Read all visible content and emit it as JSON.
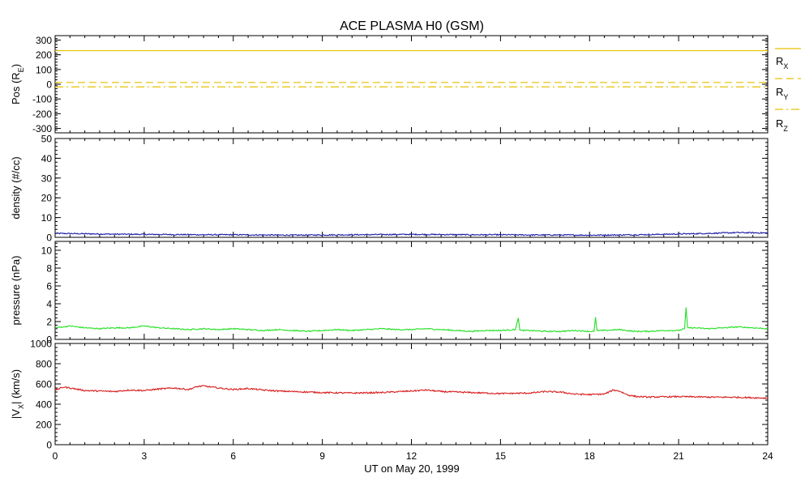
{
  "chart_data": {
    "type": "line",
    "title": "ACE PLASMA H0 (GSM)",
    "xlabel": "UT on May 20, 1999",
    "xlim": [
      0,
      24
    ],
    "x_ticks": [
      "0",
      "3",
      "6",
      "9",
      "12",
      "15",
      "18",
      "21",
      "24"
    ],
    "colors": {
      "yellow": "#e6c000",
      "blue": "#1a1aa8",
      "green": "#22e022",
      "red": "#d81a1a"
    },
    "panels": [
      {
        "id": "pos",
        "ylabel_main": "Pos (R",
        "ylabel_sub": "E",
        "ylabel_tail": ")",
        "ylim": [
          -330,
          330
        ],
        "y_ticks": [
          {
            "v": 300,
            "t": "300"
          },
          {
            "v": 200,
            "t": "200"
          },
          {
            "v": 100,
            "t": "100"
          },
          {
            "v": 0,
            "t": "0"
          },
          {
            "v": -100,
            "t": "-100"
          },
          {
            "v": -200,
            "t": "-200"
          },
          {
            "v": -300,
            "t": "-300"
          }
        ],
        "series": [
          {
            "key": "rx",
            "name_main": "R",
            "name_sub": "X",
            "style": "solid",
            "color": "#e6c000",
            "constant": 228
          },
          {
            "key": "ry",
            "name_main": "R",
            "name_sub": "Y",
            "style": "dashed",
            "color": "#e6c000",
            "constant": 12
          },
          {
            "key": "rz",
            "name_main": "R",
            "name_sub": "Z",
            "style": "dashdot",
            "color": "#e6c000",
            "constant": -18
          }
        ]
      },
      {
        "id": "density",
        "ylabel_main": "density (#/cc)",
        "ylim": [
          0,
          50
        ],
        "y_ticks": [
          {
            "v": 0,
            "t": "0"
          },
          {
            "v": 10,
            "t": "10"
          },
          {
            "v": 20,
            "t": "20"
          },
          {
            "v": 30,
            "t": "30"
          },
          {
            "v": 40,
            "t": "40"
          },
          {
            "v": 50,
            "t": "50"
          }
        ],
        "series": [
          {
            "key": "n",
            "color": "#1a1aa8",
            "x": [
              0,
              1,
              2,
              3,
              4,
              5,
              6,
              7,
              8,
              9,
              10,
              11,
              12,
              13,
              14,
              15,
              16,
              17,
              18,
              19,
              20,
              21,
              22,
              23,
              24
            ],
            "y": [
              2.0,
              1.8,
              1.6,
              1.5,
              1.4,
              1.3,
              1.3,
              1.2,
              1.1,
              1.2,
              1.3,
              1.4,
              1.5,
              1.4,
              1.3,
              1.3,
              1.2,
              1.2,
              1.1,
              1.2,
              1.4,
              1.7,
              2.0,
              2.4,
              2.2
            ]
          }
        ]
      },
      {
        "id": "pressure",
        "ylabel_main": "pressure (nPa)",
        "ylim": [
          0,
          11
        ],
        "y_ticks": [
          {
            "v": 0,
            "t": "0"
          },
          {
            "v": 2,
            "t": "2"
          },
          {
            "v": 4,
            "t": "4"
          },
          {
            "v": 6,
            "t": "6"
          },
          {
            "v": 8,
            "t": "8"
          },
          {
            "v": 10,
            "t": "10"
          }
        ],
        "series": [
          {
            "key": "p",
            "color": "#22e022",
            "x": [
              0,
              0.5,
              1,
              1.5,
              2,
              2.5,
              3,
              3.5,
              4,
              4.5,
              5,
              5.5,
              6,
              6.5,
              7,
              7.5,
              8,
              8.5,
              9,
              9.5,
              10,
              10.5,
              11,
              11.5,
              12,
              12.5,
              13,
              13.5,
              14,
              14.5,
              15,
              15.5,
              15.6,
              15.65,
              15.7,
              16,
              16.5,
              17,
              17.5,
              18,
              18.15,
              18.2,
              18.25,
              18.5,
              19,
              19.5,
              20,
              20.5,
              21,
              21.2,
              21.25,
              21.3,
              21.5,
              22,
              22.5,
              23,
              23.5,
              24
            ],
            "y": [
              1.3,
              1.5,
              1.3,
              1.2,
              1.3,
              1.3,
              1.5,
              1.3,
              1.2,
              1.1,
              1.2,
              1.1,
              1.2,
              1.1,
              1.0,
              1.1,
              1.0,
              0.9,
              1.0,
              1.1,
              1.0,
              1.1,
              1.2,
              1.1,
              1.1,
              1.2,
              1.1,
              1.0,
              0.9,
              1.0,
              1.0,
              1.1,
              2.4,
              1.1,
              1.0,
              1.0,
              0.9,
              0.9,
              1.0,
              0.9,
              0.9,
              2.5,
              1.0,
              1.0,
              1.1,
              0.9,
              0.9,
              1.0,
              1.0,
              1.2,
              3.6,
              1.3,
              1.3,
              1.2,
              1.3,
              1.4,
              1.3,
              1.2
            ]
          }
        ]
      },
      {
        "id": "vx",
        "ylabel_main": "|V",
        "ylabel_sub": "X",
        "ylabel_tail": "| (km/s)",
        "ylim": [
          0,
          1000
        ],
        "y_ticks": [
          {
            "v": 0,
            "t": "0"
          },
          {
            "v": 200,
            "t": "200"
          },
          {
            "v": 400,
            "t": "400"
          },
          {
            "v": 600,
            "t": "600"
          },
          {
            "v": 800,
            "t": "800"
          },
          {
            "v": 1000,
            "t": "1000"
          }
        ],
        "series": [
          {
            "key": "vx",
            "color": "#d81a1a",
            "x": [
              0,
              0.3,
              0.6,
              1,
              1.5,
              2,
              2.5,
              3,
              3.5,
              4,
              4.5,
              4.8,
              5,
              5.5,
              6,
              6.5,
              7,
              7.5,
              8,
              8.5,
              9,
              10,
              11,
              12,
              12.5,
              13,
              14,
              15,
              16,
              16.5,
              17,
              17.5,
              18,
              18.5,
              18.8,
              19,
              19.3,
              19.6,
              20,
              21,
              22,
              23,
              24
            ],
            "y": [
              540,
              570,
              555,
              535,
              530,
              525,
              540,
              535,
              550,
              560,
              545,
              575,
              580,
              560,
              545,
              555,
              540,
              530,
              525,
              520,
              515,
              510,
              515,
              530,
              540,
              525,
              515,
              505,
              510,
              525,
              520,
              500,
              495,
              500,
              540,
              530,
              490,
              475,
              470,
              475,
              470,
              468,
              460
            ]
          }
        ]
      }
    ]
  }
}
